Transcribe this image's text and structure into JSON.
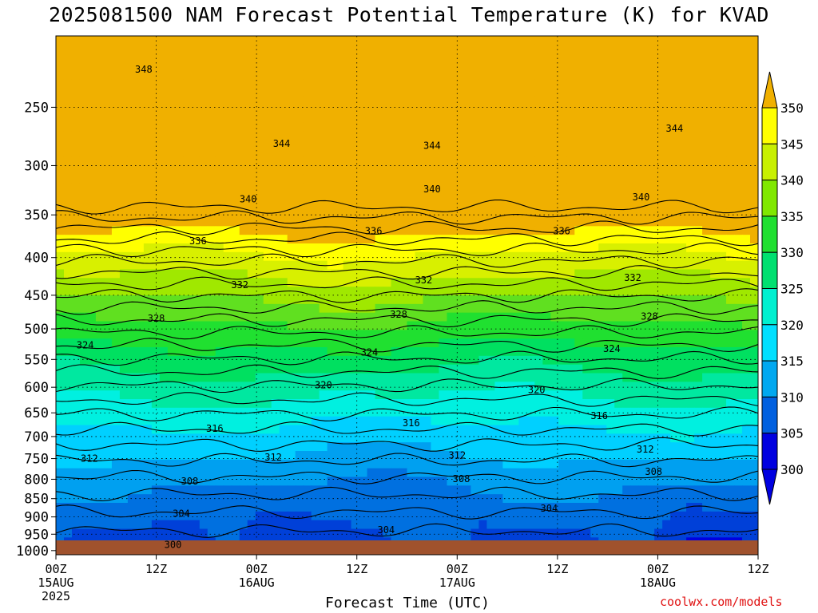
{
  "title": "2025081500 NAM Forecast Potential Temperature (K) for KVAD",
  "xlabel": "Forecast Time (UTC)",
  "credit": "coolwx.com/models",
  "colors": {
    "ground": "#a0522d",
    "bands": [
      "#0000e0",
      "#0040d8",
      "#0070e0",
      "#00a0f0",
      "#00d0ff",
      "#00f0e0",
      "#00e8a0",
      "#00e060",
      "#20e030",
      "#60e020",
      "#a0e800",
      "#d8f000",
      "#ffff00",
      "#f0b000"
    ]
  },
  "chart_data": {
    "type": "heatmap",
    "title": "2025081500 NAM Forecast Potential Temperature (K) for KVAD",
    "xlabel": "Forecast Time (UTC)",
    "ylabel": "",
    "x_ticks": [
      {
        "label": "00Z",
        "sub": "15AUG",
        "sub2": "2025",
        "hour": 0
      },
      {
        "label": "12Z",
        "sub": "",
        "sub2": "",
        "hour": 12
      },
      {
        "label": "00Z",
        "sub": "16AUG",
        "sub2": "",
        "hour": 24
      },
      {
        "label": "12Z",
        "sub": "",
        "sub2": "",
        "hour": 36
      },
      {
        "label": "00Z",
        "sub": "17AUG",
        "sub2": "",
        "hour": 48
      },
      {
        "label": "12Z",
        "sub": "",
        "sub2": "",
        "hour": 60
      },
      {
        "label": "00Z",
        "sub": "18AUG",
        "sub2": "",
        "hour": 72
      },
      {
        "label": "12Z",
        "sub": "",
        "sub2": "",
        "hour": 84
      }
    ],
    "xlim": [
      0,
      84
    ],
    "y_ticks": [
      250,
      300,
      350,
      400,
      450,
      500,
      550,
      600,
      650,
      700,
      750,
      800,
      850,
      900,
      950,
      1000
    ],
    "ylim": [
      1013,
      200
    ],
    "y_scale": "log-pressure",
    "colorbar": {
      "levels": [
        300,
        305,
        310,
        315,
        320,
        325,
        330,
        335,
        340,
        345,
        350
      ],
      "labels": [
        "300",
        "305",
        "310",
        "315",
        "320",
        "325",
        "330",
        "335",
        "340",
        "345",
        "350"
      ]
    },
    "contour_labels": [
      {
        "text": "348",
        "hour": 10.5,
        "p": 222
      },
      {
        "text": "344",
        "hour": 27,
        "p": 280
      },
      {
        "text": "344",
        "hour": 45,
        "p": 282
      },
      {
        "text": "344",
        "hour": 74,
        "p": 267
      },
      {
        "text": "340",
        "hour": 23,
        "p": 333
      },
      {
        "text": "340",
        "hour": 45,
        "p": 323
      },
      {
        "text": "340",
        "hour": 70,
        "p": 331
      },
      {
        "text": "336",
        "hour": 17,
        "p": 380
      },
      {
        "text": "336",
        "hour": 38,
        "p": 368
      },
      {
        "text": "336",
        "hour": 60.5,
        "p": 368
      },
      {
        "text": "332",
        "hour": 22,
        "p": 436
      },
      {
        "text": "332",
        "hour": 44,
        "p": 429
      },
      {
        "text": "332",
        "hour": 69,
        "p": 426
      },
      {
        "text": "328",
        "hour": 12,
        "p": 484
      },
      {
        "text": "328",
        "hour": 41,
        "p": 478
      },
      {
        "text": "328",
        "hour": 71,
        "p": 481
      },
      {
        "text": "324",
        "hour": 3.5,
        "p": 526
      },
      {
        "text": "324",
        "hour": 37.5,
        "p": 538
      },
      {
        "text": "324",
        "hour": 66.5,
        "p": 532
      },
      {
        "text": "320",
        "hour": 32,
        "p": 596
      },
      {
        "text": "320",
        "hour": 57.5,
        "p": 605
      },
      {
        "text": "316",
        "hour": 19,
        "p": 683
      },
      {
        "text": "316",
        "hour": 42.5,
        "p": 671
      },
      {
        "text": "316",
        "hour": 65,
        "p": 656
      },
      {
        "text": "312",
        "hour": 4,
        "p": 750
      },
      {
        "text": "312",
        "hour": 26,
        "p": 747
      },
      {
        "text": "312",
        "hour": 48,
        "p": 742
      },
      {
        "text": "312",
        "hour": 70.5,
        "p": 729
      },
      {
        "text": "308",
        "hour": 16,
        "p": 805
      },
      {
        "text": "308",
        "hour": 48.5,
        "p": 799
      },
      {
        "text": "308",
        "hour": 71.5,
        "p": 781
      },
      {
        "text": "304",
        "hour": 15,
        "p": 891
      },
      {
        "text": "304",
        "hour": 39.5,
        "p": 937
      },
      {
        "text": "304",
        "hour": 59,
        "p": 876
      },
      {
        "text": "300",
        "hour": 14,
        "p": 982
      }
    ]
  }
}
